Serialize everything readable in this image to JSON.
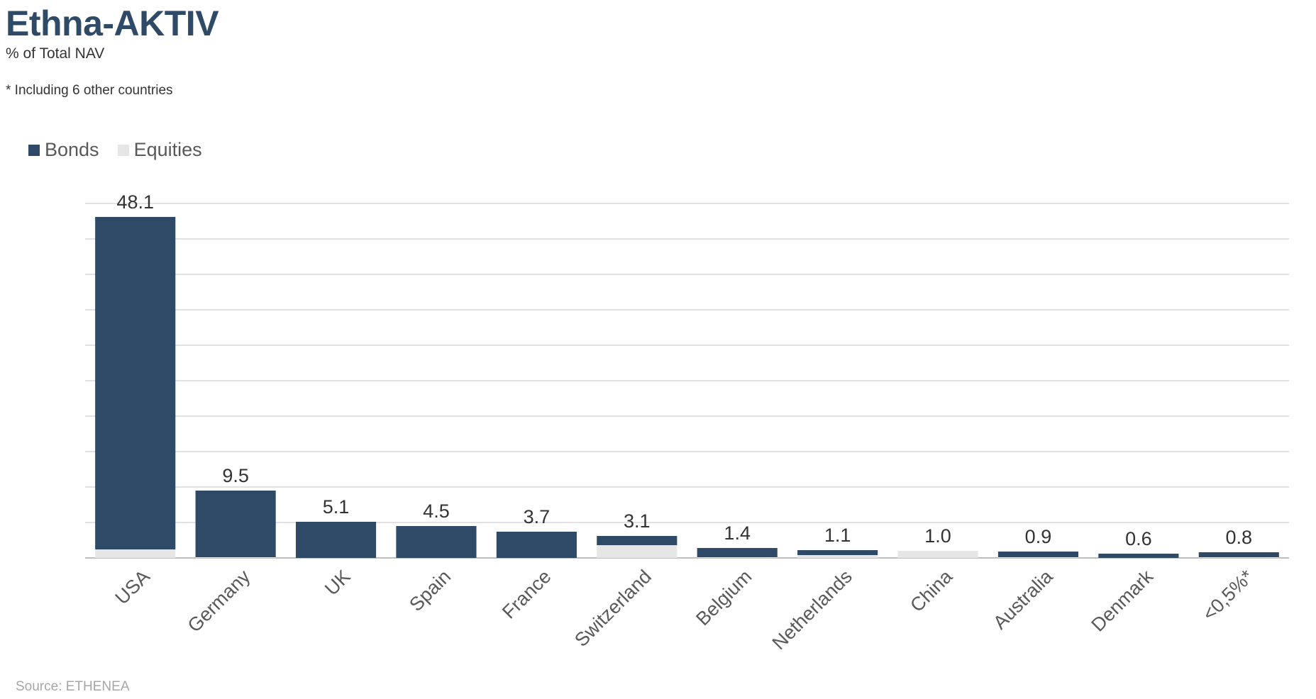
{
  "header": {
    "title": "Ethna-AKTIV",
    "subtitle": "% of Total NAV",
    "footnote": "* Including 6 other countries"
  },
  "source": "Source: ETHENEA",
  "colors": {
    "bonds": "#2e4a66",
    "equities": "#e6e6e6",
    "grid": "#d9d9d9",
    "title": "#2f4a66"
  },
  "chart_data": {
    "type": "bar",
    "stacked": true,
    "categories": [
      "USA",
      "Germany",
      "UK",
      "Spain",
      "France",
      "Switzerland",
      "Belgium",
      "Netherlands",
      "China",
      "Australia",
      "Denmark",
      "<0,5%*"
    ],
    "series": [
      {
        "name": "Bonds",
        "values": [
          46.9,
          9.4,
          5.1,
          4.5,
          3.7,
          1.3,
          1.3,
          0.7,
          0.0,
          0.8,
          0.6,
          0.7
        ]
      },
      {
        "name": "Equities",
        "values": [
          1.2,
          0.1,
          0.0,
          0.0,
          0.0,
          1.8,
          0.1,
          0.4,
          1.0,
          0.1,
          0.0,
          0.1
        ]
      }
    ],
    "totals": [
      "48.1",
      "9.5",
      "5.1",
      "4.5",
      "3.7",
      "3.1",
      "1.4",
      "1.1",
      "1.0",
      "0.9",
      "0.6",
      "0.8"
    ],
    "ylim": [
      0,
      50
    ],
    "grid": true,
    "legend_position": "top-left"
  }
}
